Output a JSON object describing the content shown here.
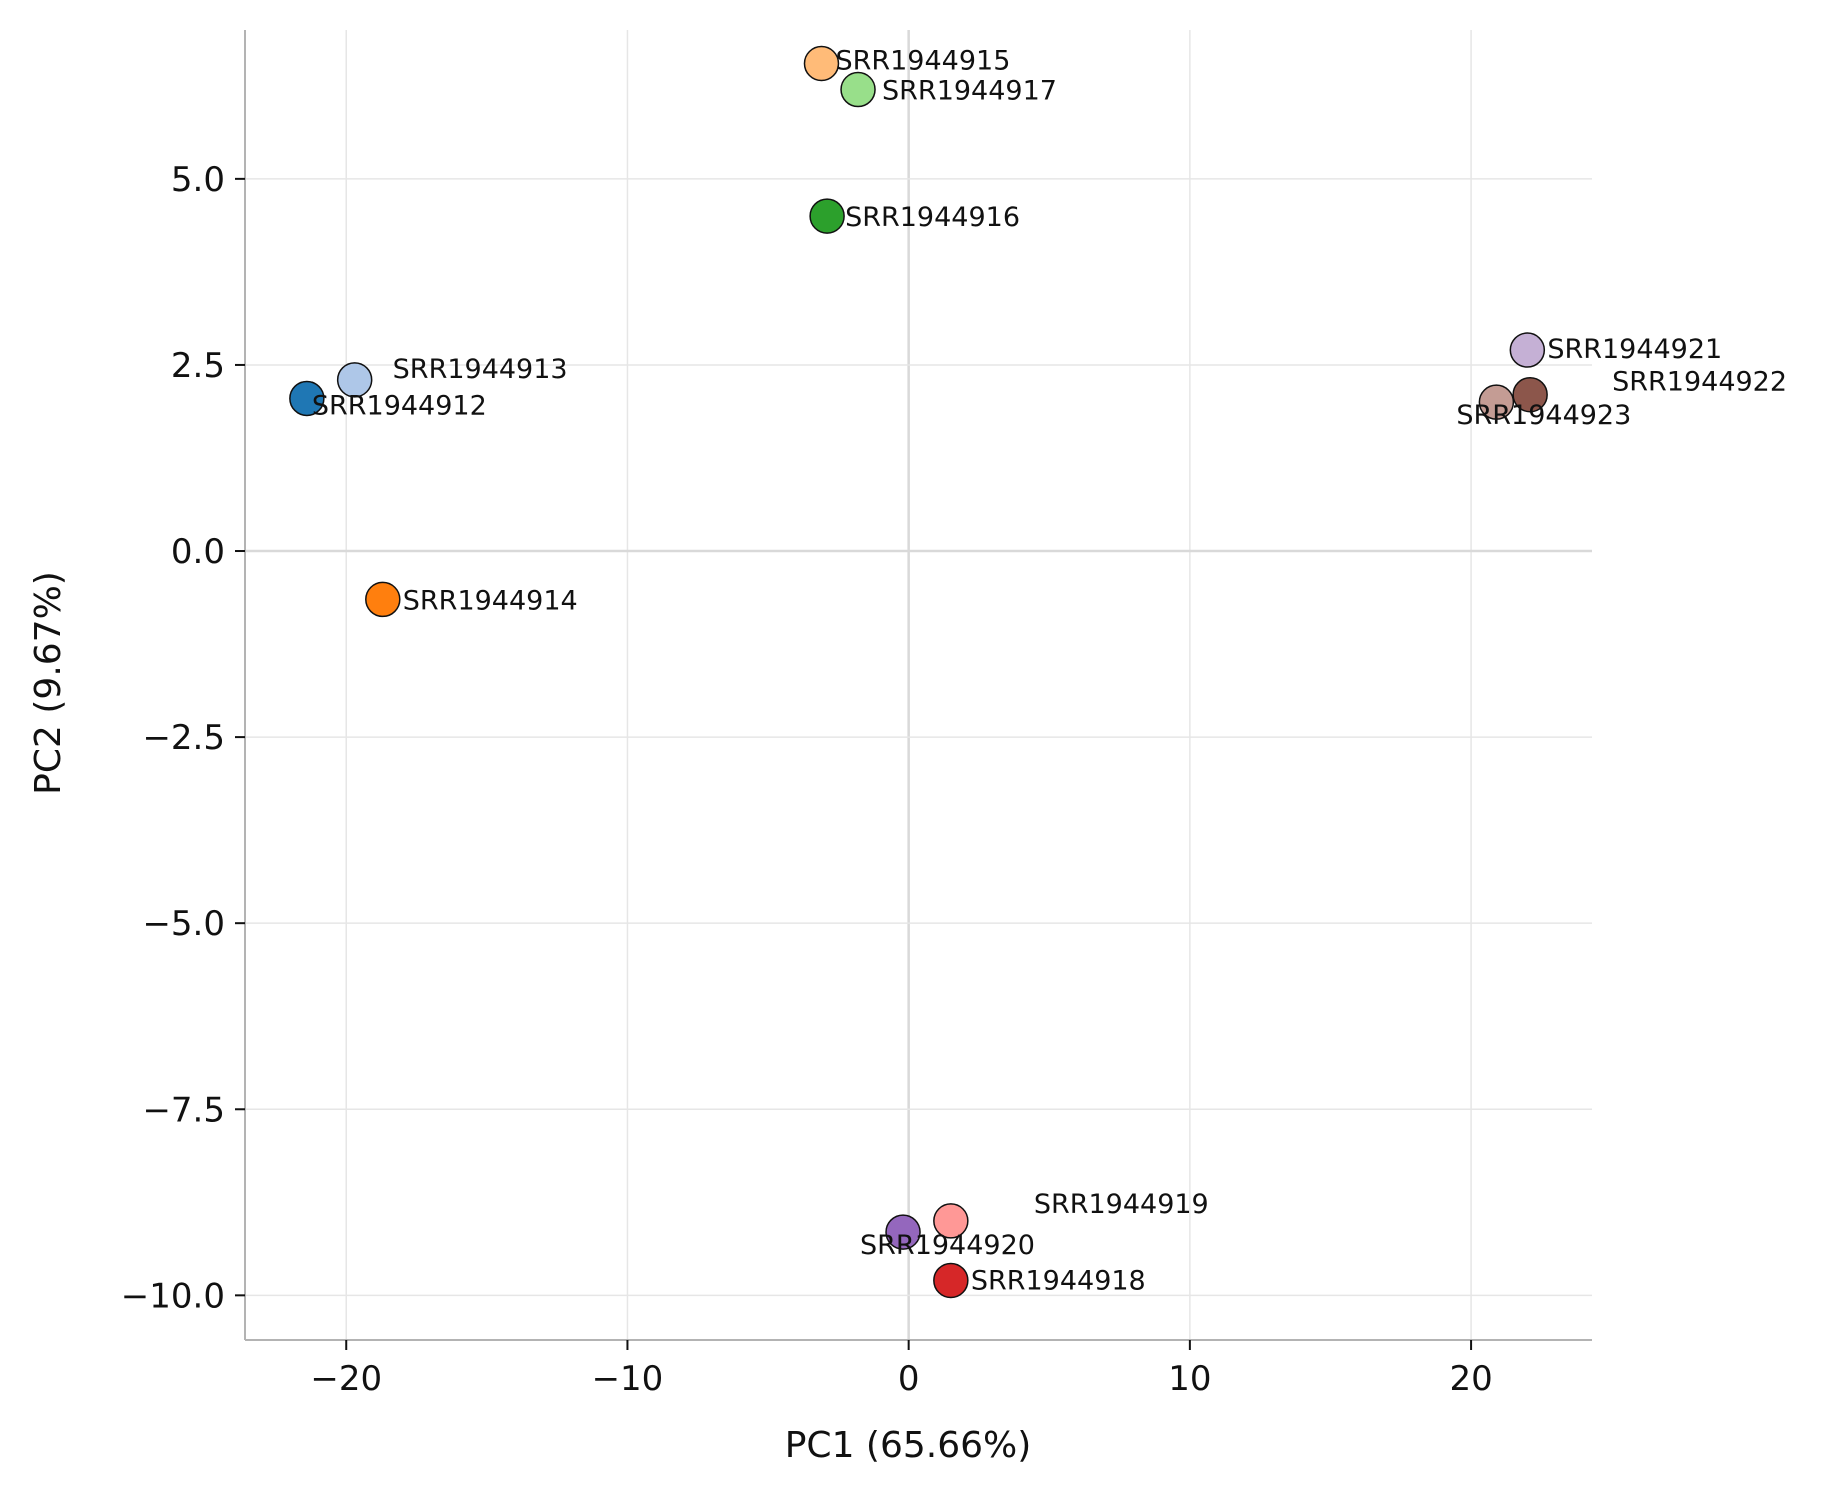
{
  "chart_data": {
    "type": "scatter",
    "title": "",
    "xlabel": "PC1 (65.66%)",
    "ylabel": "PC2 (9.67%)",
    "xlim": [
      -23.6,
      24.3
    ],
    "ylim": [
      -10.6,
      7.0
    ],
    "xticks": [
      -20,
      -10,
      0,
      10,
      20
    ],
    "xtick_labels": [
      "−20",
      "−10",
      "0",
      "10",
      "20"
    ],
    "yticks": [
      5.0,
      2.5,
      0.0,
      -2.5,
      -5.0,
      -7.5,
      -10.0
    ],
    "ytick_labels": [
      "5.0",
      "2.5",
      "0.0",
      "−2.5",
      "−5.0",
      "−7.5",
      "−10.0"
    ],
    "grid": true,
    "legend": "none",
    "points": [
      {
        "name": "SRR1944912",
        "x": -21.4,
        "y": 2.05,
        "color": "#1f77b4"
      },
      {
        "name": "SRR1944913",
        "x": -19.7,
        "y": 2.3,
        "color": "#aec7e8"
      },
      {
        "name": "SRR1944914",
        "x": -18.7,
        "y": -0.65,
        "color": "#ff7f0e"
      },
      {
        "name": "SRR1944915",
        "x": -3.1,
        "y": 6.55,
        "color": "#ffbb78"
      },
      {
        "name": "SRR1944916",
        "x": -2.9,
        "y": 4.5,
        "color": "#2ca02c"
      },
      {
        "name": "SRR1944917",
        "x": -1.8,
        "y": 6.2,
        "color": "#98df8a"
      },
      {
        "name": "SRR1944918",
        "x": 1.5,
        "y": -9.8,
        "color": "#d62728"
      },
      {
        "name": "SRR1944919",
        "x": 1.5,
        "y": -9.0,
        "color": "#ff9896"
      },
      {
        "name": "SRR1944920",
        "x": -0.2,
        "y": -9.15,
        "color": "#9467bd"
      },
      {
        "name": "SRR1944921",
        "x": 22.0,
        "y": 2.7,
        "color": "#c5b0d5"
      },
      {
        "name": "SRR1944922",
        "x": 22.1,
        "y": 2.1,
        "color": "#8c564b"
      },
      {
        "name": "SRR1944923",
        "x": 20.9,
        "y": 2.0,
        "color": "#c49c94"
      }
    ]
  }
}
